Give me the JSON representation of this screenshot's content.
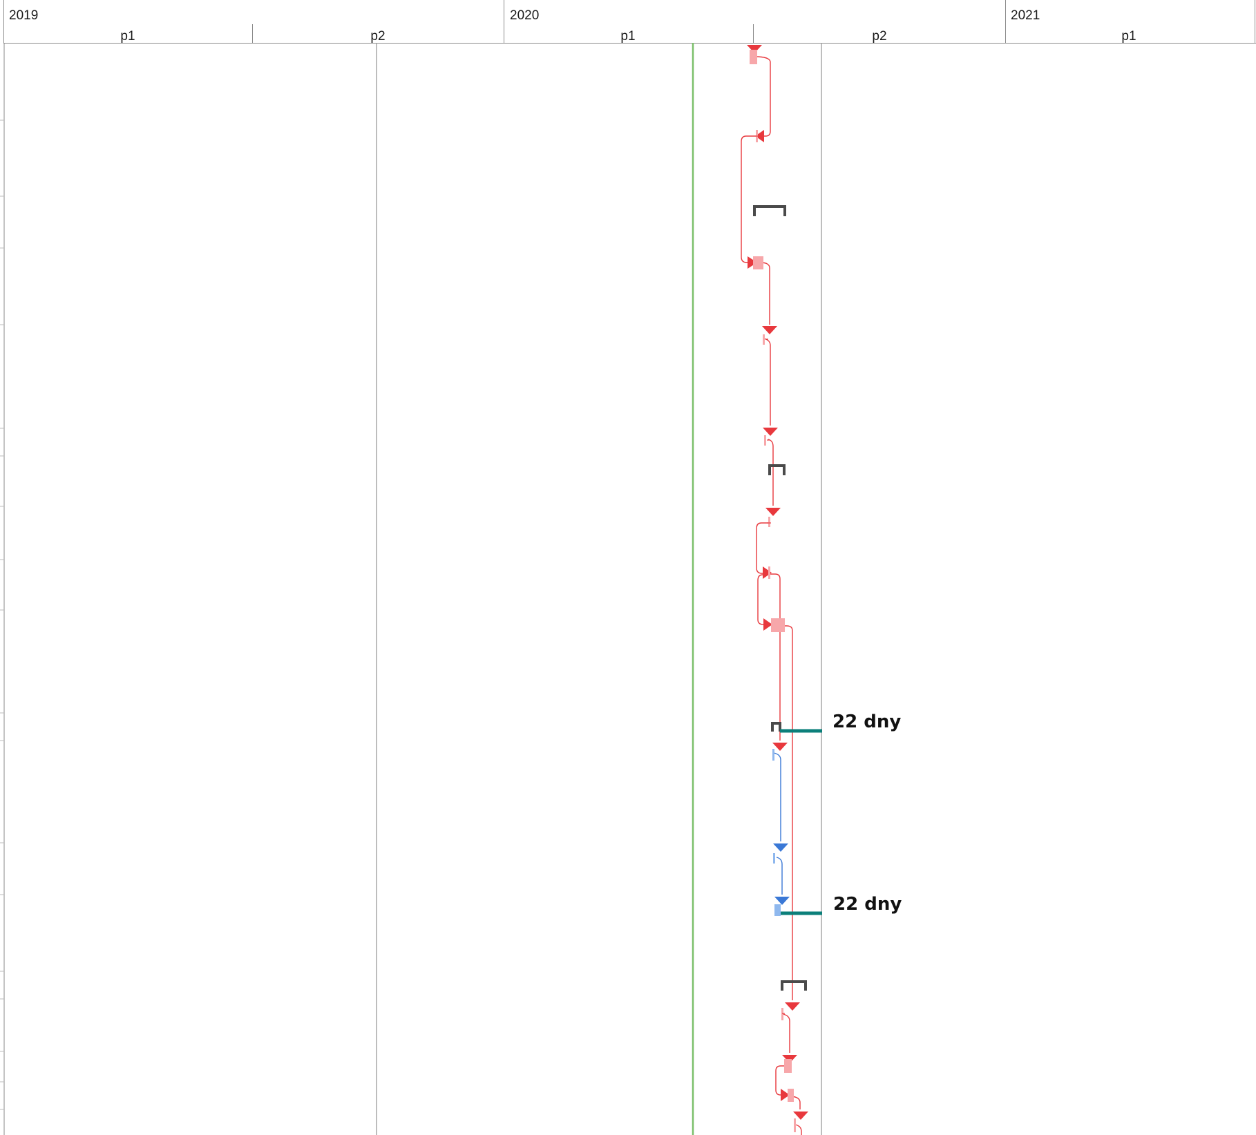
{
  "timescale": {
    "years": [
      "2019",
      "2020",
      "2021"
    ],
    "periods": [
      "p1",
      "p2",
      "p1",
      "p2",
      "p1"
    ]
  },
  "duration_labels": [
    "22 dny",
    "22 dny"
  ],
  "colors": {
    "critical_link": "#e8383d",
    "critical_task": "#f7a7aa",
    "normal_link": "#3a78d6",
    "normal_task": "#8fb8ee",
    "summary": "#4a4a4a",
    "slack": "#0b7f7a",
    "current_date_line": "#7bbf6a",
    "grid": "#8a8a8a"
  }
}
